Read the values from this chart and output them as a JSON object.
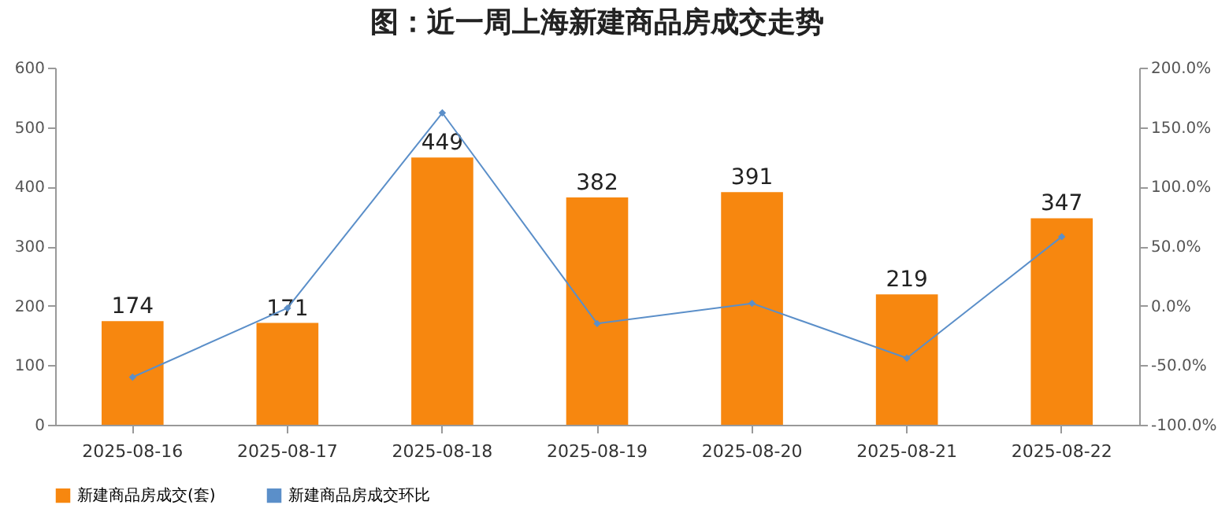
{
  "chart_data": {
    "type": "bar",
    "title": "图：近一周上海新建商品房成交走势",
    "categories": [
      "2025-08-16",
      "2025-08-17",
      "2025-08-18",
      "2025-08-19",
      "2025-08-20",
      "2025-08-21",
      "2025-08-22"
    ],
    "series": [
      {
        "name": "新建商品房成交(套)",
        "color": "#f7870f",
        "values": [
          174,
          171,
          449,
          382,
          391,
          219,
          347
        ],
        "value_labels": [
          "174",
          "171",
          "449",
          "382",
          "391",
          "219",
          "347"
        ]
      },
      {
        "name": "新建商品房成交环比",
        "type": "line",
        "axis": "y2",
        "color": "#5b8fc9",
        "values": [
          -60,
          -2,
          162,
          -15,
          2,
          -44,
          58
        ]
      }
    ],
    "ylim": [
      0,
      600
    ],
    "yticks": [
      0,
      100,
      200,
      300,
      400,
      500,
      600
    ],
    "y2lim": [
      -100,
      200
    ],
    "y2ticks": [
      {
        "value": -100,
        "label": "-100.0%"
      },
      {
        "value": -50,
        "label": "-50.0%"
      },
      {
        "value": 0,
        "label": "0.0%"
      },
      {
        "value": 50,
        "label": "50.0%"
      },
      {
        "value": 100,
        "label": "100.0%"
      },
      {
        "value": 150,
        "label": "150.0%"
      },
      {
        "value": 200,
        "label": "200.0%"
      }
    ],
    "grid": false,
    "legend": "bottom",
    "marker": "diamond",
    "line_style": "solid"
  }
}
